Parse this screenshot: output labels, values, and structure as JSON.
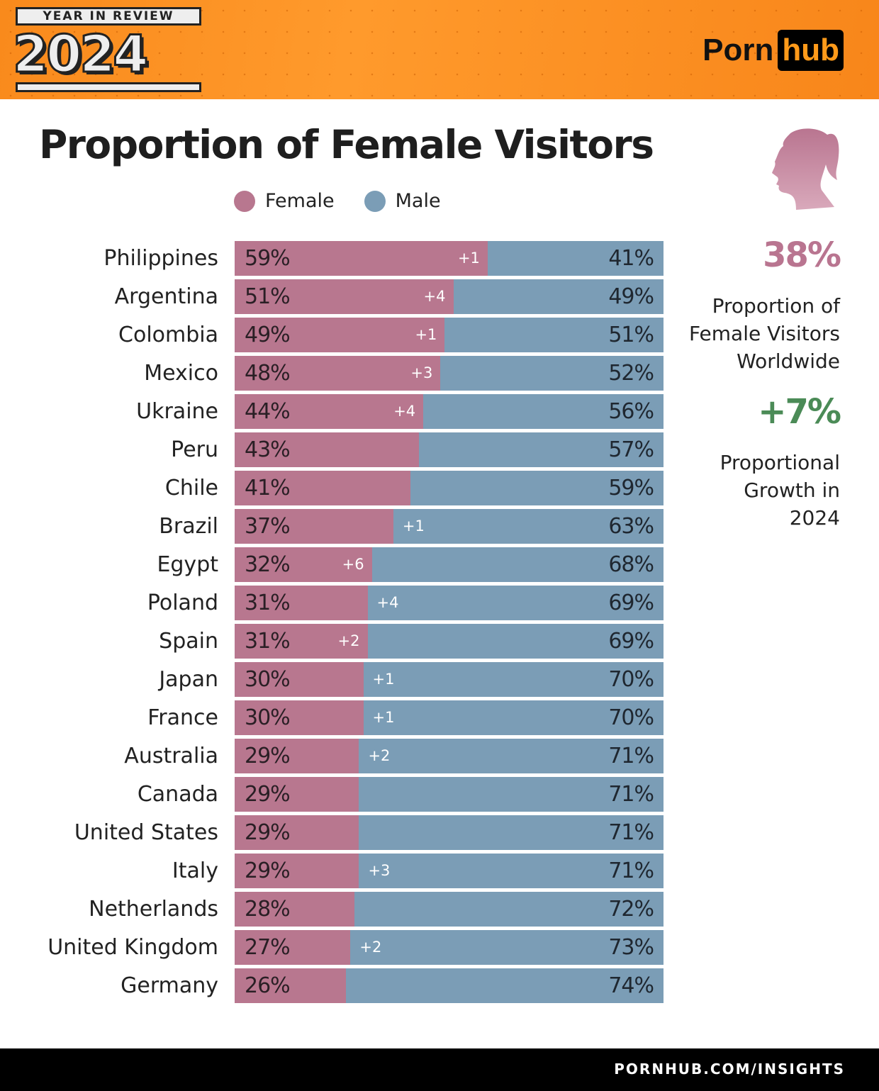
{
  "header": {
    "badge_top": "YEAR IN REVIEW",
    "badge_year": "2024",
    "logo_left": "Porn",
    "logo_right": "hub"
  },
  "footer": {
    "url": "PORNHUB.COM/INSIGHTS"
  },
  "side": {
    "stat1": "38%",
    "stat1_desc": [
      "Proportion of",
      "Female Visitors",
      "Worldwide"
    ],
    "stat2": "+7%",
    "stat2_desc": [
      "Proportional",
      "Growth in",
      "2024"
    ],
    "icon": "female-silhouette-icon",
    "colors": {
      "stat1": "#b97590",
      "stat2": "#4b8b57"
    }
  },
  "chart_data": {
    "type": "bar",
    "orientation": "horizontal",
    "stacked": true,
    "normalized": true,
    "title": "Proportion of Female Visitors",
    "legend": {
      "placement": "top",
      "items": [
        "Female",
        "Male"
      ]
    },
    "colors": {
      "Female": "#b8778f",
      "Male": "#7b9db6"
    },
    "categories": [
      "Philippines",
      "Argentina",
      "Colombia",
      "Mexico",
      "Ukraine",
      "Peru",
      "Chile",
      "Brazil",
      "Egypt",
      "Poland",
      "Spain",
      "Japan",
      "France",
      "Australia",
      "Canada",
      "United States",
      "Italy",
      "Netherlands",
      "United Kingdom",
      "Germany"
    ],
    "series": [
      {
        "name": "Female",
        "values": [
          59,
          51,
          49,
          48,
          44,
          43,
          41,
          37,
          32,
          31,
          31,
          30,
          30,
          29,
          29,
          29,
          29,
          28,
          27,
          26
        ]
      },
      {
        "name": "Male",
        "values": [
          41,
          49,
          51,
          52,
          56,
          57,
          59,
          63,
          68,
          69,
          69,
          70,
          70,
          71,
          71,
          71,
          71,
          72,
          73,
          74
        ]
      }
    ],
    "change_labels": [
      "+1",
      "+4",
      "+1",
      "+3",
      "+4",
      "",
      "",
      "+1",
      "+6",
      "+4",
      "+2",
      "+1",
      "+1",
      "+2",
      "",
      "",
      "+3",
      "",
      "+2",
      ""
    ],
    "change_label_side": [
      "female",
      "female",
      "female",
      "female",
      "female",
      "",
      "",
      "male",
      "female",
      "male",
      "female",
      "male",
      "male",
      "male",
      "",
      "",
      "male",
      "",
      "male",
      ""
    ],
    "xlim": [
      0,
      100
    ]
  }
}
